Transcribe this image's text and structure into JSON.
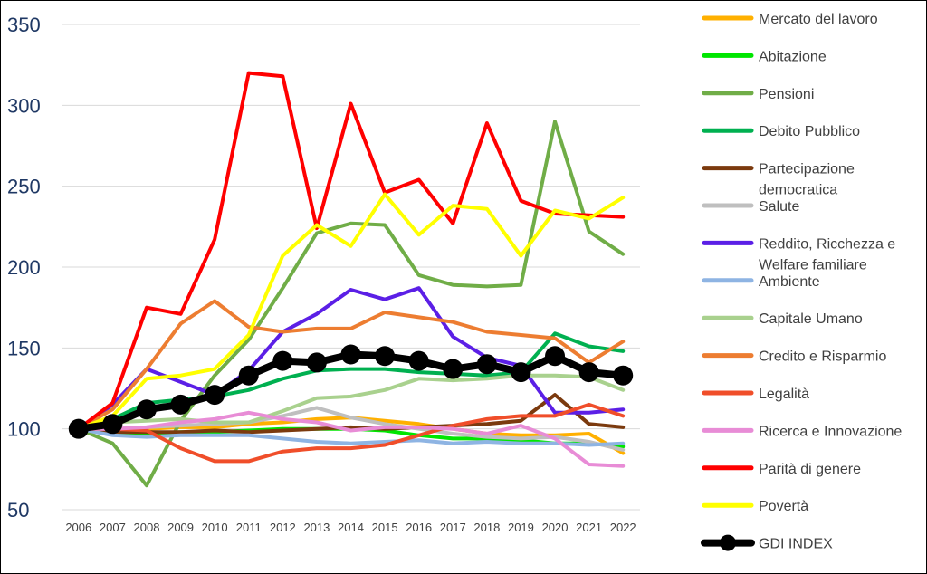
{
  "chart_data": {
    "type": "line",
    "title": "",
    "xlabel": "",
    "ylabel": "",
    "ylim": [
      50,
      350
    ],
    "yticks": [
      50,
      100,
      150,
      200,
      250,
      300,
      350
    ],
    "grid": "horizontal",
    "legend_position": "right",
    "x": [
      "2006",
      "2007",
      "2008",
      "2009",
      "2010",
      "2011",
      "2012",
      "2013",
      "2014",
      "2015",
      "2016",
      "2017",
      "2018",
      "2019",
      "2020",
      "2021",
      "2022"
    ],
    "series": [
      {
        "name": "Mercato del lavoro",
        "color": "#FFB000",
        "values": [
          100,
          99,
          100,
          101,
          101,
          103,
          104,
          106,
          107,
          105,
          103,
          100,
          97,
          96,
          96,
          97,
          85
        ]
      },
      {
        "name": "Abitazione",
        "color": "#00E600",
        "values": [
          100,
          98,
          97,
          98,
          98,
          99,
          100,
          100,
          100,
          99,
          96,
          94,
          94,
          93,
          91,
          91,
          89
        ]
      },
      {
        "name": "Pensioni",
        "color": "#70AD47",
        "values": [
          100,
          91,
          65,
          105,
          133,
          155,
          187,
          221,
          227,
          226,
          195,
          189,
          188,
          189,
          290,
          222,
          208
        ]
      },
      {
        "name": "Debito Pubblico",
        "color": "#00B050",
        "values": [
          100,
          106,
          116,
          118,
          120,
          124,
          131,
          136,
          137,
          137,
          135,
          134,
          133,
          135,
          159,
          151,
          148
        ]
      },
      {
        "name": "Partecipazione democratica",
        "color": "#7B3A0E",
        "values": [
          100,
          98,
          98,
          98,
          99,
          98,
          99,
          100,
          101,
          100,
          101,
          102,
          103,
          105,
          121,
          103,
          101
        ]
      },
      {
        "name": "Salute",
        "color": "#BFBFBF",
        "values": [
          100,
          100,
          101,
          102,
          103,
          104,
          108,
          113,
          107,
          103,
          100,
          97,
          95,
          94,
          95,
          92,
          87
        ]
      },
      {
        "name": "Reddito, Ricchezza e Welfare familiare",
        "color": "#5B1FE6",
        "values": [
          100,
          115,
          137,
          129,
          121,
          136,
          160,
          171,
          186,
          180,
          187,
          157,
          144,
          139,
          110,
          110,
          112
        ]
      },
      {
        "name": "Ambiente",
        "color": "#8EB4E3",
        "values": [
          100,
          96,
          95,
          96,
          96,
          96,
          94,
          92,
          91,
          92,
          93,
          91,
          92,
          91,
          91,
          90,
          91
        ]
      },
      {
        "name": "Capitale Umano",
        "color": "#A9D18E",
        "values": [
          100,
          104,
          105,
          106,
          104,
          104,
          111,
          119,
          120,
          124,
          131,
          130,
          131,
          133,
          133,
          132,
          124
        ]
      },
      {
        "name": "Credito e Risparmio",
        "color": "#ED7D31",
        "values": [
          100,
          112,
          137,
          165,
          179,
          163,
          160,
          162,
          162,
          172,
          169,
          166,
          160,
          158,
          156,
          141,
          154
        ]
      },
      {
        "name": "Legalità",
        "color": "#F04E2A",
        "values": [
          100,
          100,
          99,
          88,
          80,
          80,
          86,
          88,
          88,
          90,
          96,
          102,
          106,
          108,
          108,
          115,
          108
        ]
      },
      {
        "name": "Ricerca e Innovazione",
        "color": "#E88CD6",
        "values": [
          100,
          100,
          101,
          104,
          106,
          110,
          106,
          104,
          99,
          101,
          101,
          100,
          97,
          102,
          94,
          78,
          77
        ]
      },
      {
        "name": "Parità di genere",
        "color": "#FF0000",
        "values": [
          100,
          116,
          175,
          171,
          217,
          320,
          318,
          224,
          301,
          246,
          254,
          227,
          289,
          241,
          233,
          232,
          231
        ]
      },
      {
        "name": "Povertà",
        "color": "#FFFF00",
        "values": [
          100,
          108,
          131,
          133,
          137,
          158,
          207,
          226,
          213,
          245,
          220,
          238,
          236,
          207,
          235,
          230,
          243
        ]
      },
      {
        "name": "GDI INDEX",
        "color": "#000000",
        "marker": "circle",
        "values": [
          100,
          103,
          112,
          115,
          121,
          133,
          142,
          141,
          146,
          145,
          142,
          137,
          140,
          135,
          145,
          135,
          133
        ]
      }
    ]
  }
}
